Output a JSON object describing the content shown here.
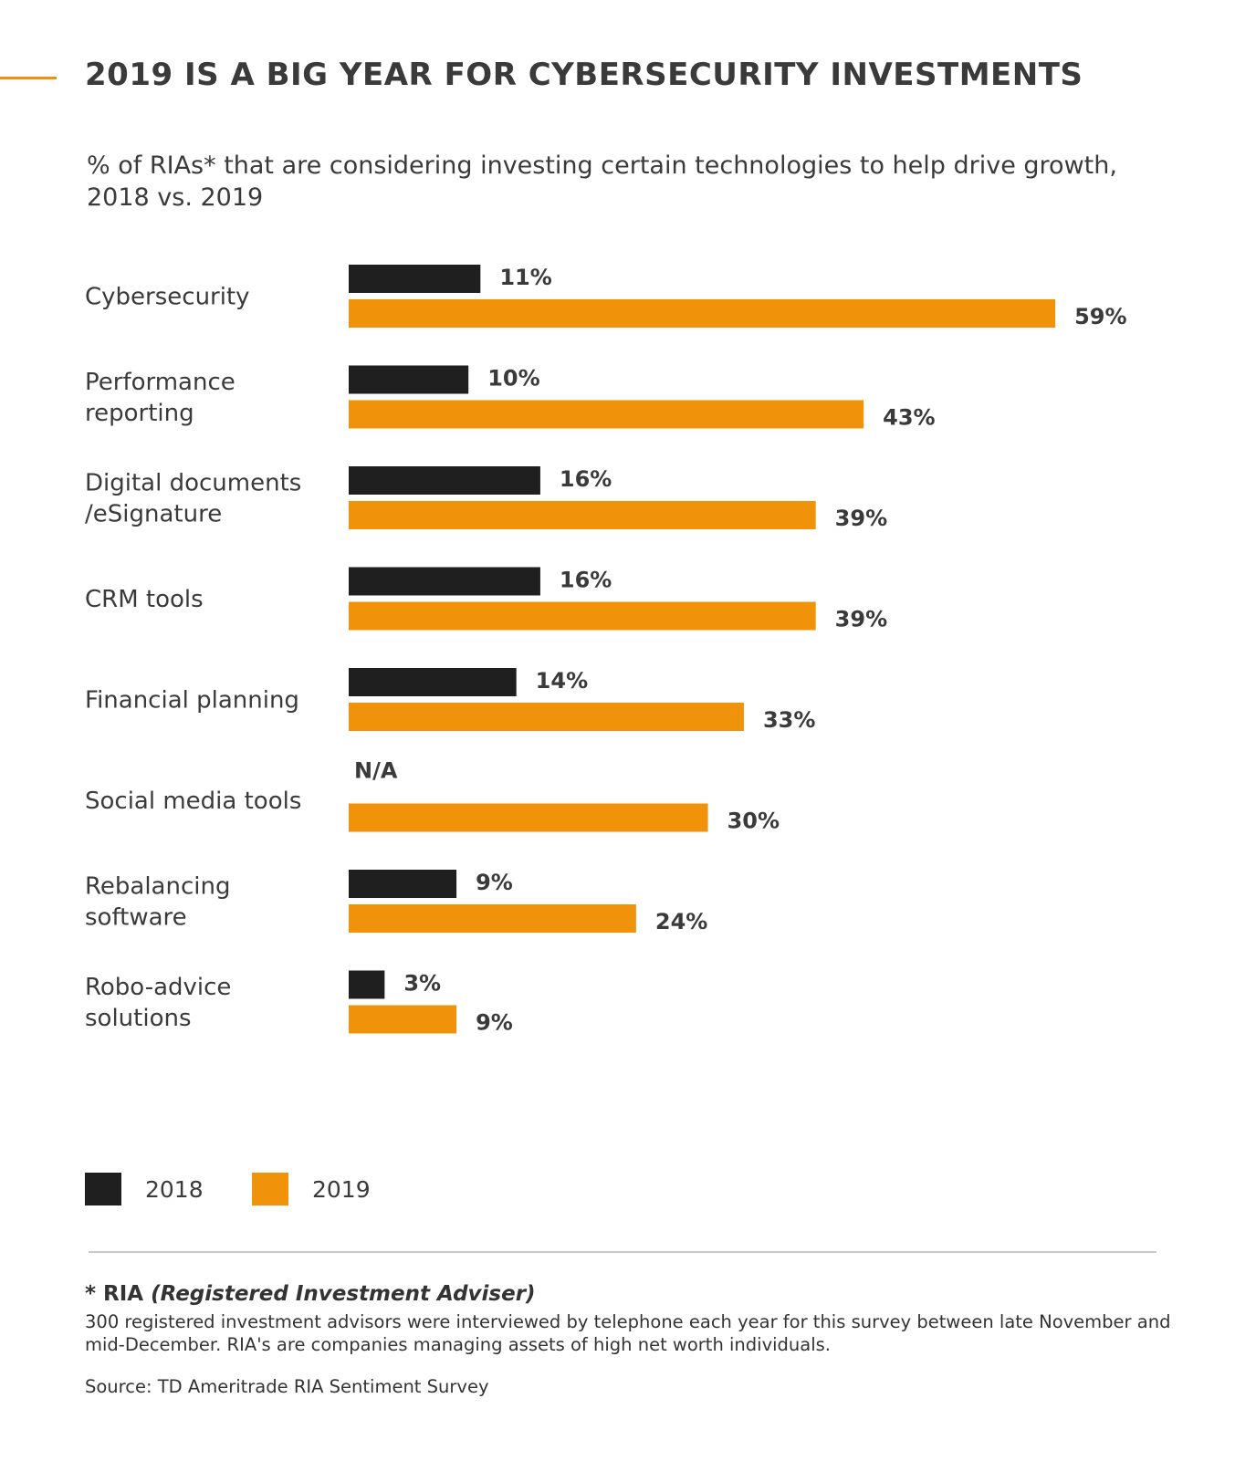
{
  "header": {
    "title": "2019 IS A BIG YEAR FOR CYBERSECURITY INVESTMENTS",
    "subtitle": "% of RIAs* that are considering investing certain technologies to help drive growth, 2018 vs. 2019"
  },
  "chart_data": {
    "type": "bar",
    "orientation": "horizontal",
    "title": "2019 IS A BIG YEAR FOR CYBERSECURITY INVESTMENTS",
    "subtitle": "% of RIAs* that are considering investing certain technologies to help drive growth, 2018 vs. 2019",
    "unit": "%",
    "xlim": [
      0,
      59
    ],
    "grid": false,
    "legend_position": "bottom-left",
    "categories": [
      [
        "Cybersecurity"
      ],
      [
        "Performance",
        "reporting"
      ],
      [
        "Digital documents",
        "/eSignature"
      ],
      [
        "CRM tools"
      ],
      [
        "Financial planning"
      ],
      [
        "Social media tools"
      ],
      [
        "Rebalancing",
        "software"
      ],
      [
        "Robo-advice",
        "solutions"
      ]
    ],
    "series": [
      {
        "name": "2018",
        "color": "#1f1f1f",
        "values": [
          11,
          10,
          16,
          16,
          14,
          null,
          9,
          3
        ],
        "labels": [
          "11%",
          "10%",
          "16%",
          "16%",
          "14%",
          "N/A",
          "9%",
          "3%"
        ]
      },
      {
        "name": "2019",
        "color": "#f0930a",
        "values": [
          59,
          43,
          39,
          39,
          33,
          30,
          24,
          9
        ],
        "labels": [
          "59%",
          "43%",
          "39%",
          "39%",
          "33%",
          "30%",
          "24%",
          "9%"
        ]
      }
    ]
  },
  "legend": {
    "items": [
      {
        "label": "2018",
        "color": "#1f1f1f"
      },
      {
        "label": "2019",
        "color": "#f0930a"
      }
    ]
  },
  "footnote": {
    "title_prefix": "* RIA ",
    "title_italic": "(Registered Investment Adviser)",
    "text": "300 registered investment advisors were interviewed by telephone each year for this survey between late November and mid-December. RIA's are companies managing assets of high net worth individuals.",
    "source": "Source: TD Ameritrade RIA Sentiment Survey"
  }
}
